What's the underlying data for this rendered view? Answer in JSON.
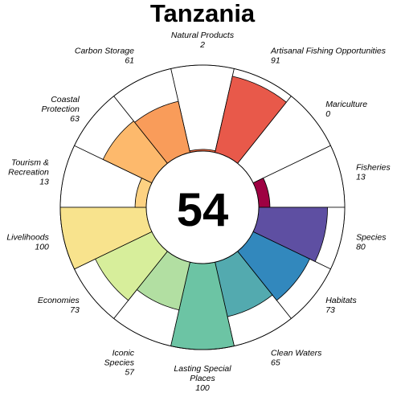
{
  "chart_data": {
    "type": "flower",
    "title": "Tanzania",
    "center_score": "54",
    "ylim": [
      0,
      100
    ],
    "goals": [
      {
        "label": [
          "Natural Products"
        ],
        "value": 2,
        "color": "#F46D43"
      },
      {
        "label": [
          "Artisanal Fishing Opportunities"
        ],
        "value": 91,
        "color": "#E8594A"
      },
      {
        "label": [
          "Mariculture"
        ],
        "value": 0,
        "color": "#C21F4B"
      },
      {
        "label": [
          "Fisheries"
        ],
        "value": 13,
        "color": "#9E0142"
      },
      {
        "label": [
          "Species"
        ],
        "value": 80,
        "color": "#5E4FA2"
      },
      {
        "label": [
          "Habitats"
        ],
        "value": 73,
        "color": "#3288BD"
      },
      {
        "label": [
          "Clean Waters"
        ],
        "value": 65,
        "color": "#53AAAF"
      },
      {
        "label": [
          "Lasting Special",
          "Places"
        ],
        "value": 100,
        "color": "#6CC4A4"
      },
      {
        "label": [
          "Iconic",
          "Species"
        ],
        "value": 57,
        "color": "#B2DFA2"
      },
      {
        "label": [
          "Economies"
        ],
        "value": 73,
        "color": "#D7EE9B"
      },
      {
        "label": [
          "Livelihoods"
        ],
        "value": 100,
        "color": "#F8E38D"
      },
      {
        "label": [
          "Tourism &",
          "Recreation"
        ],
        "value": 13,
        "color": "#FDD282"
      },
      {
        "label": [
          "Coastal",
          "Protection"
        ],
        "value": 63,
        "color": "#FDB96C"
      },
      {
        "label": [
          "Carbon Storage"
        ],
        "value": 61,
        "color": "#F99C5A"
      }
    ]
  }
}
